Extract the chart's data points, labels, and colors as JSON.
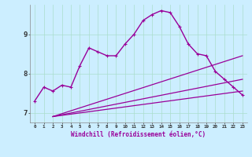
{
  "xlabel": "Windchill (Refroidissement éolien,°C)",
  "bg_color": "#cceeff",
  "line_color": "#990099",
  "grid_color": "#aaddcc",
  "x_ticks": [
    0,
    1,
    2,
    3,
    4,
    5,
    6,
    7,
    8,
    9,
    10,
    11,
    12,
    13,
    14,
    15,
    16,
    17,
    18,
    19,
    20,
    21,
    22,
    23
  ],
  "y_ticks": [
    7,
    8,
    9
  ],
  "xlim": [
    -0.5,
    23.5
  ],
  "ylim": [
    6.75,
    9.75
  ],
  "series": [
    {
      "x": [
        0,
        1,
        2,
        3,
        4,
        5,
        6,
        7,
        8,
        9,
        10,
        11,
        12,
        13,
        14,
        15,
        16,
        17,
        18,
        19,
        20,
        21,
        22,
        23
      ],
      "y": [
        7.3,
        7.65,
        7.55,
        7.7,
        7.65,
        8.2,
        8.65,
        8.55,
        8.45,
        8.45,
        8.75,
        9.0,
        9.35,
        9.5,
        9.6,
        9.55,
        9.2,
        8.75,
        8.5,
        8.45,
        8.05,
        7.85,
        7.65,
        7.45
      ],
      "marker": true,
      "linewidth": 1.0
    },
    {
      "x": [
        2,
        23
      ],
      "y": [
        6.9,
        7.55
      ],
      "marker": false,
      "linewidth": 0.9
    },
    {
      "x": [
        2,
        23
      ],
      "y": [
        6.9,
        7.85
      ],
      "marker": false,
      "linewidth": 0.9
    },
    {
      "x": [
        2,
        23
      ],
      "y": [
        6.9,
        8.45
      ],
      "marker": false,
      "linewidth": 0.9
    }
  ]
}
